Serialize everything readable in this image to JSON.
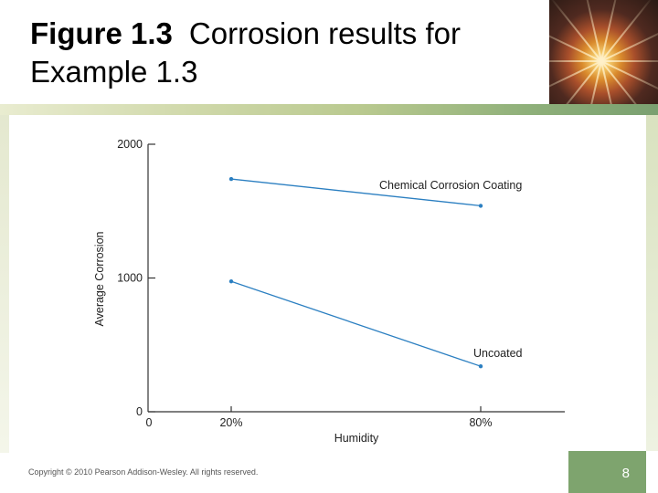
{
  "slide": {
    "figure_label": "Figure 1.3",
    "title": "Corrosion results for Example 1.3",
    "copyright": "Copyright © 2010 Pearson Addison-Wesley. All rights reserved.",
    "page_number": "8"
  },
  "colors": {
    "line": "#2b7fc1",
    "axis": "#333333",
    "accent": "#7ea46e"
  },
  "chart_data": {
    "type": "line",
    "categories": [
      "20%",
      "80%"
    ],
    "x_tick_labels": [
      "0",
      "20%",
      "80%"
    ],
    "y_ticks": [
      0,
      1000,
      2000
    ],
    "ylim": [
      0,
      2000
    ],
    "xlabel": "Humidity",
    "ylabel": "Average Corrosion",
    "grid": false,
    "series": [
      {
        "name": "Chemical Corrosion Coating",
        "values": [
          1740,
          1540
        ]
      },
      {
        "name": "Uncoated",
        "values": [
          975,
          340
        ]
      }
    ]
  }
}
